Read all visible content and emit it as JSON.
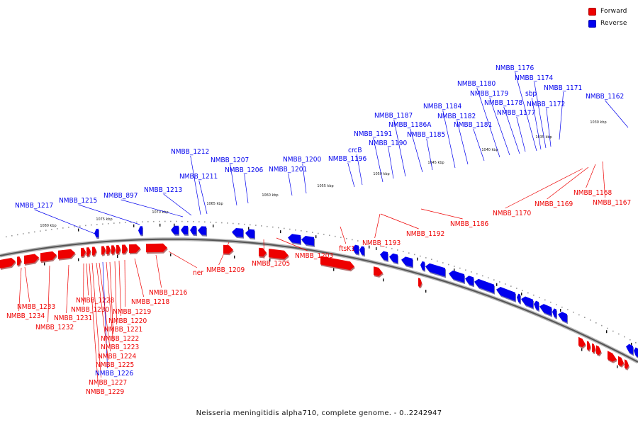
{
  "caption": "Neisseria meningitidis alpha710, complete genome. - 0..2242947",
  "legend": {
    "items": [
      {
        "label": "Forward",
        "color": "#ee0000"
      },
      {
        "label": "Reverse",
        "color": "#0000ee"
      }
    ]
  },
  "colors": {
    "forward": "#ee0000",
    "reverse": "#0000ee",
    "backbone": "#555555"
  },
  "ticks": [
    "1080 kbp",
    "1075 kbp",
    "1070 kbp",
    "1065 kbp",
    "1060 kbp",
    "1055 kbp",
    "1050 kbp",
    "1045 kbp",
    "1040 kbp",
    "1035 kbp",
    "1030 kbp"
  ],
  "genes": {
    "forward": [
      "NMBB_1167",
      "NMBB_1168",
      "NMBB_1169",
      "NMBB_1170",
      "NMBB_1186",
      "NMBB_1192",
      "NMBB_1193",
      "ftsK1",
      "NMBB_1203",
      "NMBB_1205",
      "NMBB_1209",
      "ner",
      "NMBB_1216",
      "NMBB_1218",
      "NMBB_1219",
      "NMBB_1220",
      "NMBB_1221",
      "NMBB_1222",
      "NMBB_1223",
      "NMBB_1224",
      "NMBB_1225",
      "NMBB_1227",
      "NMBB_1228",
      "NMBB_1229",
      "NMBB_1230",
      "NMBB_1231",
      "NMBB_1232",
      "NMBB_1233",
      "NMBB_1234"
    ],
    "reverse": [
      "NMBB_1162",
      "NMBB_1171",
      "NMBB_1172",
      "NMBB_1174",
      "sbp",
      "NMBB_1176",
      "NMBB_1177",
      "NMBB_1178",
      "NMBB_1179",
      "NMBB_1180",
      "NMBB_1181",
      "NMBB_1182",
      "NMBB_1184",
      "NMBB_1185",
      "NMBB_1186A",
      "NMBB_1187",
      "NMBB_1190",
      "NMBB_1191",
      "crcB",
      "NMBB_1196",
      "NMBB_1200",
      "NMBB_1201",
      "NMBB_1206",
      "NMBB_1207",
      "NMBB_1211",
      "NMBB_1212",
      "NMBB_1213",
      "NMBB_897",
      "NMBB_1215",
      "NMBB_1217",
      "NMBB_1226"
    ]
  }
}
